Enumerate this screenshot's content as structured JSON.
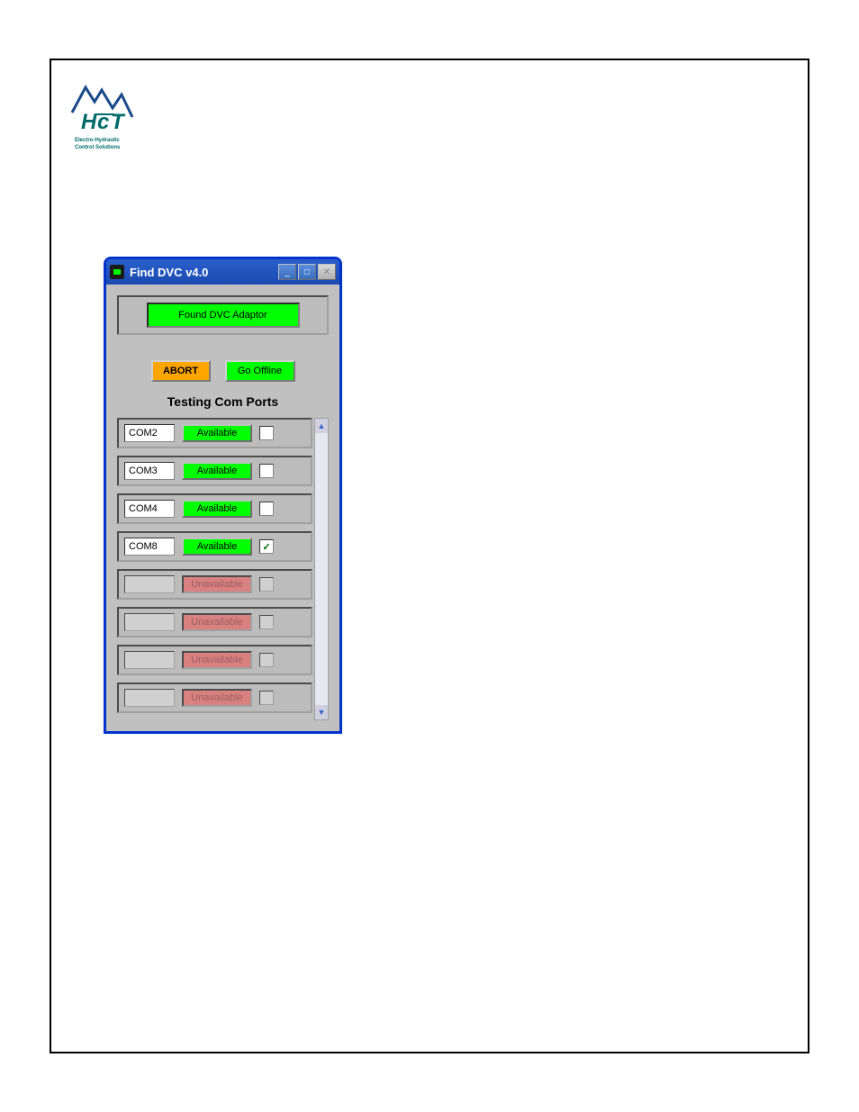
{
  "logo": {
    "brand": "HcT",
    "tagline_line1": "Electro-Hydraulic",
    "tagline_line2": "Control Solutions",
    "mountain_color": "#1a4a8a",
    "text_color": "#006b6b"
  },
  "window": {
    "title": "Find DVC v4.0",
    "border_color": "#0033cc",
    "titlebar_gradient_start": "#2a5fcc",
    "titlebar_gradient_end": "#1a4ab0",
    "body_background": "#c0c0c0"
  },
  "status": {
    "text": "Found DVC Adaptor",
    "background": "#00ff00"
  },
  "buttons": {
    "abort": {
      "label": "ABORT",
      "background": "#ffa500"
    },
    "offline": {
      "label": "Go Offline",
      "background": "#00ff00"
    }
  },
  "section_label": "Testing Com Ports",
  "ports": [
    {
      "name": "COM2",
      "status": "Available",
      "available": true,
      "checked": false
    },
    {
      "name": "COM3",
      "status": "Available",
      "available": true,
      "checked": false
    },
    {
      "name": "COM4",
      "status": "Available",
      "available": true,
      "checked": false
    },
    {
      "name": "COM8",
      "status": "Available",
      "available": true,
      "checked": true
    },
    {
      "name": "",
      "status": "Unavailable",
      "available": false,
      "checked": false
    },
    {
      "name": "",
      "status": "Unavailable",
      "available": false,
      "checked": false
    },
    {
      "name": "",
      "status": "Unavailable",
      "available": false,
      "checked": false
    },
    {
      "name": "",
      "status": "Unavailable",
      "available": false,
      "checked": false
    }
  ],
  "colors": {
    "available_bg": "#00ff00",
    "unavailable_bg": "#d98080",
    "unavailable_text": "#996060",
    "panel_inset": "#bcbcbc"
  }
}
